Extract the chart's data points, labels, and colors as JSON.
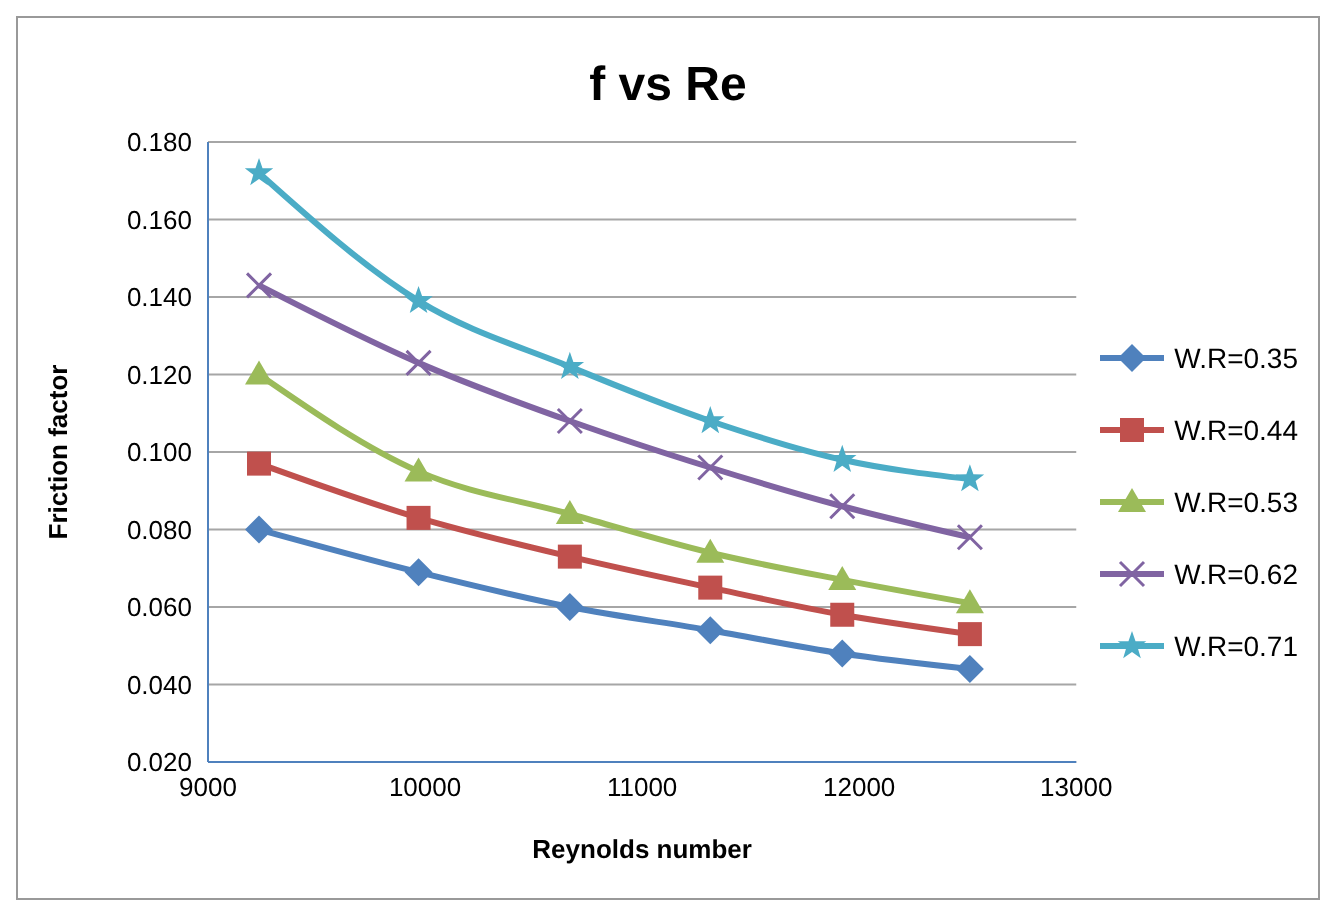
{
  "chart_data": {
    "type": "line",
    "title": "f vs Re",
    "xlabel": "Reynolds number",
    "ylabel": "Friction factor",
    "x": [
      9235,
      9970,
      10667,
      11314,
      11922,
      12510
    ],
    "series": [
      {
        "name": "W.R=0.71",
        "color": "#4bacc6",
        "marker": "star",
        "values": [
          0.172,
          0.139,
          0.122,
          0.108,
          0.098,
          0.093
        ]
      },
      {
        "name": "W.R=0.62",
        "color": "#8064a2",
        "marker": "cross",
        "values": [
          0.143,
          0.123,
          0.108,
          0.096,
          0.086,
          0.078
        ]
      },
      {
        "name": "W.R=0.53",
        "color": "#9bbb59",
        "marker": "triangle",
        "values": [
          0.12,
          0.095,
          0.084,
          0.074,
          0.067,
          0.061
        ]
      },
      {
        "name": "W.R=0.44",
        "color": "#c0504d",
        "marker": "square",
        "values": [
          0.097,
          0.083,
          0.073,
          0.065,
          0.058,
          0.053
        ]
      },
      {
        "name": "W.R=0.35",
        "color": "#4f81bd",
        "marker": "diamond",
        "values": [
          0.08,
          0.069,
          0.06,
          0.054,
          0.048,
          0.044
        ]
      }
    ],
    "xlim": [
      9000,
      13000
    ],
    "xticks": [
      9000,
      10000,
      11000,
      12000,
      13000
    ],
    "ylim": [
      0.02,
      0.18
    ],
    "yticks": [
      {
        "value": 0.02,
        "label": "0.020"
      },
      {
        "value": 0.04,
        "label": "0.040"
      },
      {
        "value": 0.06,
        "label": "0.060"
      },
      {
        "value": 0.08,
        "label": "0.080"
      },
      {
        "value": 0.1,
        "label": "0.100"
      },
      {
        "value": 0.12,
        "label": "0.120"
      },
      {
        "value": 0.14,
        "label": "0.140"
      },
      {
        "value": 0.16,
        "label": "0.160"
      },
      {
        "value": 0.18,
        "label": "0.180"
      }
    ],
    "grid": "y",
    "legend": "right",
    "line_style": "solid"
  }
}
